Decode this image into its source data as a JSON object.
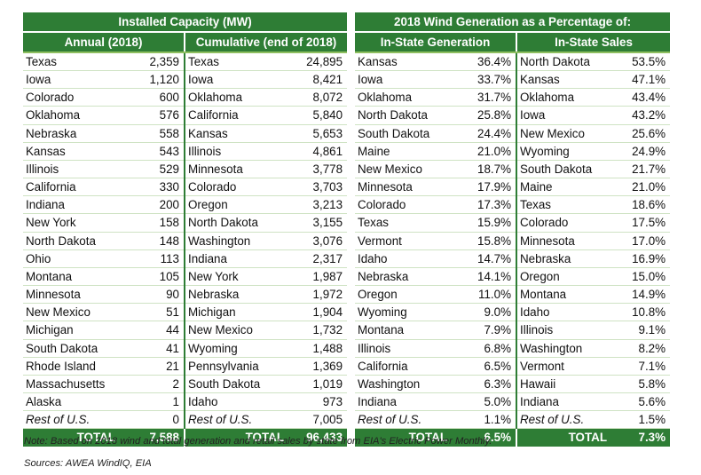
{
  "installed": {
    "title": "Installed Capacity (MW)",
    "annual_header": "Annual (2018)",
    "cumulative_header": "Cumulative (end of 2018)",
    "rows": [
      {
        "a_state": "Texas",
        "a_val": "2,359",
        "c_state": "Texas",
        "c_val": "24,895"
      },
      {
        "a_state": "Iowa",
        "a_val": "1,120",
        "c_state": "Iowa",
        "c_val": "8,421"
      },
      {
        "a_state": "Colorado",
        "a_val": "600",
        "c_state": "Oklahoma",
        "c_val": "8,072"
      },
      {
        "a_state": "Oklahoma",
        "a_val": "576",
        "c_state": "California",
        "c_val": "5,840"
      },
      {
        "a_state": "Nebraska",
        "a_val": "558",
        "c_state": "Kansas",
        "c_val": "5,653"
      },
      {
        "a_state": "Kansas",
        "a_val": "543",
        "c_state": "Illinois",
        "c_val": "4,861"
      },
      {
        "a_state": "Illinois",
        "a_val": "529",
        "c_state": "Minnesota",
        "c_val": "3,778"
      },
      {
        "a_state": "California",
        "a_val": "330",
        "c_state": "Colorado",
        "c_val": "3,703"
      },
      {
        "a_state": "Indiana",
        "a_val": "200",
        "c_state": "Oregon",
        "c_val": "3,213"
      },
      {
        "a_state": "New York",
        "a_val": "158",
        "c_state": "North Dakota",
        "c_val": "3,155"
      },
      {
        "a_state": "North Dakota",
        "a_val": "148",
        "c_state": "Washington",
        "c_val": "3,076"
      },
      {
        "a_state": "Ohio",
        "a_val": "113",
        "c_state": "Indiana",
        "c_val": "2,317"
      },
      {
        "a_state": "Montana",
        "a_val": "105",
        "c_state": "New York",
        "c_val": "1,987"
      },
      {
        "a_state": "Minnesota",
        "a_val": "90",
        "c_state": "Nebraska",
        "c_val": "1,972"
      },
      {
        "a_state": "New Mexico",
        "a_val": "51",
        "c_state": "Michigan",
        "c_val": "1,904"
      },
      {
        "a_state": "Michigan",
        "a_val": "44",
        "c_state": "New Mexico",
        "c_val": "1,732"
      },
      {
        "a_state": "South Dakota",
        "a_val": "41",
        "c_state": "Wyoming",
        "c_val": "1,488"
      },
      {
        "a_state": "Rhode Island",
        "a_val": "21",
        "c_state": "Pennsylvania",
        "c_val": "1,369"
      },
      {
        "a_state": "Massachusetts",
        "a_val": "2",
        "c_state": "South Dakota",
        "c_val": "1,019"
      },
      {
        "a_state": "Alaska",
        "a_val": "1",
        "c_state": "Idaho",
        "c_val": "973"
      },
      {
        "a_state": "Rest of U.S.",
        "a_val": "0",
        "c_state": "Rest of U.S.",
        "c_val": "7,005"
      }
    ],
    "total_label": "TOTAL",
    "annual_total": "7,588",
    "cumulative_total": "96,433"
  },
  "generation": {
    "title": "2018 Wind Generation as a Percentage of:",
    "gen_header": "In-State Generation",
    "sales_header": "In-State Sales",
    "rows": [
      {
        "g_state": "Kansas",
        "g_val": "36.4%",
        "s_state": "North Dakota",
        "s_val": "53.5%"
      },
      {
        "g_state": "Iowa",
        "g_val": "33.7%",
        "s_state": "Kansas",
        "s_val": "47.1%"
      },
      {
        "g_state": "Oklahoma",
        "g_val": "31.7%",
        "s_state": "Oklahoma",
        "s_val": "43.4%"
      },
      {
        "g_state": "North Dakota",
        "g_val": "25.8%",
        "s_state": "Iowa",
        "s_val": "43.2%"
      },
      {
        "g_state": "South Dakota",
        "g_val": "24.4%",
        "s_state": "New Mexico",
        "s_val": "25.6%"
      },
      {
        "g_state": "Maine",
        "g_val": "21.0%",
        "s_state": "Wyoming",
        "s_val": "24.9%"
      },
      {
        "g_state": "New Mexico",
        "g_val": "18.7%",
        "s_state": "South Dakota",
        "s_val": "21.7%"
      },
      {
        "g_state": "Minnesota",
        "g_val": "17.9%",
        "s_state": "Maine",
        "s_val": "21.0%"
      },
      {
        "g_state": "Colorado",
        "g_val": "17.3%",
        "s_state": "Texas",
        "s_val": "18.6%"
      },
      {
        "g_state": "Texas",
        "g_val": "15.9%",
        "s_state": "Colorado",
        "s_val": "17.5%"
      },
      {
        "g_state": "Vermont",
        "g_val": "15.8%",
        "s_state": "Minnesota",
        "s_val": "17.0%"
      },
      {
        "g_state": "Idaho",
        "g_val": "14.7%",
        "s_state": "Nebraska",
        "s_val": "16.9%"
      },
      {
        "g_state": "Nebraska",
        "g_val": "14.1%",
        "s_state": "Oregon",
        "s_val": "15.0%"
      },
      {
        "g_state": "Oregon",
        "g_val": "11.0%",
        "s_state": "Montana",
        "s_val": "14.9%"
      },
      {
        "g_state": "Wyoming",
        "g_val": "9.0%",
        "s_state": "Idaho",
        "s_val": "10.8%"
      },
      {
        "g_state": "Montana",
        "g_val": "7.9%",
        "s_state": "Illinois",
        "s_val": "9.1%"
      },
      {
        "g_state": "Illinois",
        "g_val": "6.8%",
        "s_state": "Washington",
        "s_val": "8.2%"
      },
      {
        "g_state": "California",
        "g_val": "6.5%",
        "s_state": "Vermont",
        "s_val": "7.1%"
      },
      {
        "g_state": "Washington",
        "g_val": "6.3%",
        "s_state": "Hawaii",
        "s_val": "5.8%"
      },
      {
        "g_state": "Indiana",
        "g_val": "5.0%",
        "s_state": "Indiana",
        "s_val": "5.6%"
      },
      {
        "g_state": "Rest of U.S.",
        "g_val": "1.1%",
        "s_state": "Rest of U.S.",
        "s_val": "1.5%"
      }
    ],
    "total_label": "TOTAL",
    "gen_total": "6.5%",
    "sales_total": "7.3%"
  },
  "footer": {
    "note": "Note: Based on 2018 wind and total generation and retail sales by state from EIA's Electric Power Monthly.",
    "sources": "Sources: AWEA WindIQ, EIA"
  }
}
